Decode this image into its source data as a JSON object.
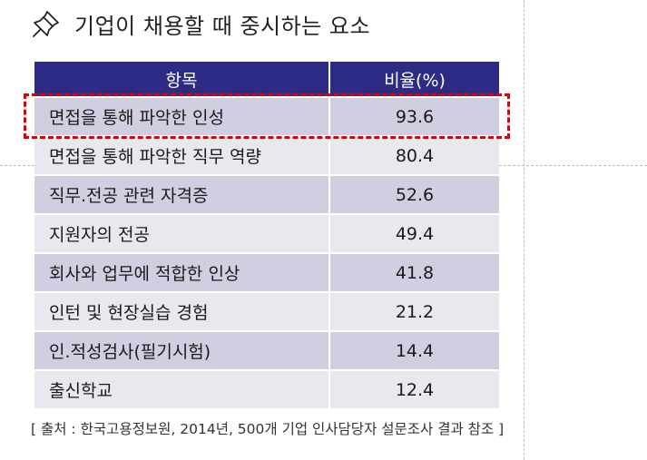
{
  "title": "기업이 채용할 때 중시하는 요소",
  "icon": "pushpin-icon",
  "table": {
    "headers": [
      "항목",
      "비율(%)"
    ],
    "rows": [
      {
        "item": "면접을 통해 파악한 인성",
        "value": "93.6",
        "highlighted": true
      },
      {
        "item": "면접을 통해 파악한 직무 역량",
        "value": "80.4"
      },
      {
        "item": "직무.전공 관련 자격증",
        "value": "52.6"
      },
      {
        "item": "지원자의 전공",
        "value": "49.4"
      },
      {
        "item": "회사와 업무에 적합한 인상",
        "value": "41.8"
      },
      {
        "item": "인턴 및 현장실습 경험",
        "value": "21.2"
      },
      {
        "item": "인.적성검사(필기시험)",
        "value": "14.4"
      },
      {
        "item": "출신학교",
        "value": "12.4"
      }
    ]
  },
  "source": "[ 출처 : 한국고용정보원, 2014년, 500개 기업 인사담당자 설문조사 결과 참조 ]",
  "colors": {
    "header_bg": "#2e2b85",
    "row_odd": "#d0cfe1",
    "row_even": "#e8e8ef",
    "highlight_border": "#e00000"
  }
}
